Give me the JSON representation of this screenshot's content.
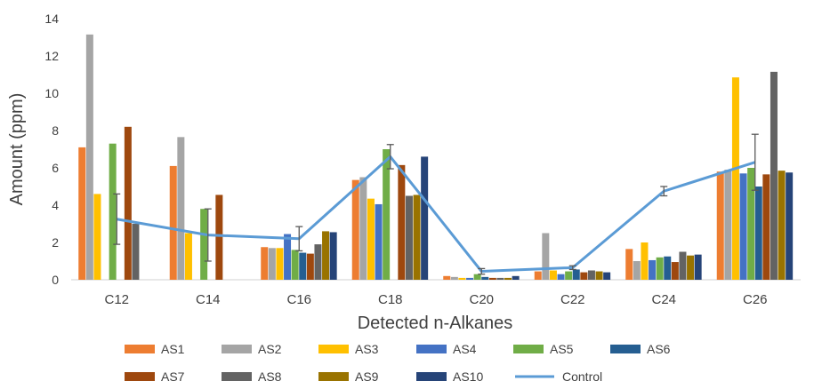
{
  "chart_data": {
    "type": "bar",
    "xlabel": "Detected n-Alkanes",
    "ylabel": "Amount (ppm)",
    "ylim": [
      0,
      14
    ],
    "yticks": [
      0,
      2,
      4,
      6,
      8,
      10,
      12,
      14
    ],
    "categories": [
      "C12",
      "C14",
      "C16",
      "C18",
      "C20",
      "C22",
      "C24",
      "C26"
    ],
    "series": [
      {
        "name": "AS1",
        "color": "#ED7D31",
        "values": [
          7.1,
          6.1,
          1.75,
          5.35,
          0.2,
          0.45,
          1.65,
          5.8
        ]
      },
      {
        "name": "AS2",
        "color": "#A5A5A5",
        "values": [
          13.15,
          7.65,
          1.7,
          5.5,
          0.15,
          2.5,
          1.0,
          5.9
        ]
      },
      {
        "name": "AS3",
        "color": "#FFC000",
        "values": [
          4.6,
          2.5,
          1.7,
          4.35,
          0.1,
          0.5,
          2.0,
          10.85
        ]
      },
      {
        "name": "AS4",
        "color": "#4472C4",
        "values": [
          0,
          0,
          2.45,
          4.05,
          0.1,
          0.3,
          1.05,
          5.7
        ]
      },
      {
        "name": "AS5",
        "color": "#70AD47",
        "values": [
          7.3,
          3.8,
          1.6,
          7.0,
          0.3,
          0.45,
          1.2,
          6.0
        ]
      },
      {
        "name": "AS6",
        "color": "#255E91",
        "values": [
          0,
          0,
          1.45,
          0,
          0.15,
          0.55,
          1.25,
          5.0
        ]
      },
      {
        "name": "AS7",
        "color": "#9E480E",
        "values": [
          8.2,
          4.55,
          1.4,
          6.15,
          0.1,
          0.4,
          0.95,
          5.65
        ]
      },
      {
        "name": "AS8",
        "color": "#636363",
        "values": [
          3.0,
          0,
          1.9,
          4.5,
          0.1,
          0.5,
          1.5,
          11.15
        ]
      },
      {
        "name": "AS9",
        "color": "#997300",
        "values": [
          0,
          0,
          2.6,
          4.55,
          0.1,
          0.45,
          1.3,
          5.85
        ]
      },
      {
        "name": "AS10",
        "color": "#264478",
        "values": [
          0,
          0,
          2.55,
          6.6,
          0.2,
          0.4,
          1.35,
          5.75
        ]
      }
    ],
    "line_series": {
      "name": "Control",
      "color": "#5B9BD5",
      "values": [
        3.25,
        2.4,
        2.2,
        6.6,
        0.45,
        0.65,
        4.75,
        6.3
      ],
      "error": [
        1.35,
        1.4,
        0.65,
        0.65,
        0.15,
        0.1,
        0.25,
        1.5
      ]
    },
    "legend_position": "bottom",
    "grid": false
  }
}
